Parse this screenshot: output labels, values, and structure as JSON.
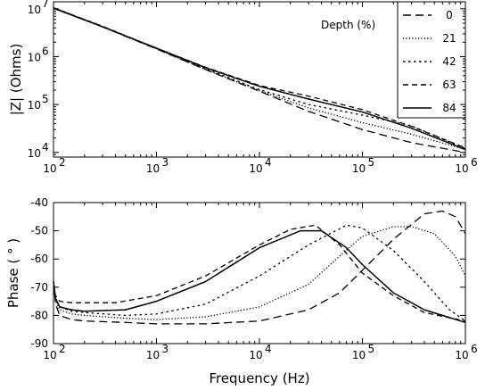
{
  "chart_data": [
    {
      "type": "line",
      "ylabel": "|Z| (Ohms)",
      "xscale": "log",
      "yscale": "log",
      "xlim": [
        100,
        1000000
      ],
      "ylim": [
        8000,
        14000000
      ],
      "x_ticks": [
        {
          "base": "10",
          "exp": "2",
          "value": 100
        },
        {
          "base": "10",
          "exp": "3",
          "value": 1000
        },
        {
          "base": "10",
          "exp": "4",
          "value": 10000
        },
        {
          "base": "10",
          "exp": "5",
          "value": 100000
        },
        {
          "base": "10",
          "exp": "6",
          "value": 1000000
        }
      ],
      "y_ticks": [
        {
          "base": "10",
          "exp": "4",
          "value": 10000
        },
        {
          "base": "10",
          "exp": "5",
          "value": 100000
        },
        {
          "base": "10",
          "exp": "6",
          "value": 1000000
        },
        {
          "base": "10",
          "exp": "7",
          "value": 10000000
        }
      ],
      "legend": {
        "title": "Depth (%)",
        "position": "top-right"
      },
      "series": [
        {
          "name": "0",
          "style": "long-dash",
          "x": [
            100,
            300,
            1000,
            3000,
            10000,
            30000,
            100000,
            300000,
            1000000
          ],
          "y": [
            10500000,
            4200000,
            1450000,
            540000,
            190000,
            72000,
            30000,
            16000,
            10000
          ]
        },
        {
          "name": "21",
          "style": "dotted",
          "x": [
            100,
            300,
            1000,
            3000,
            10000,
            30000,
            100000,
            300000,
            1000000
          ],
          "y": [
            10500000,
            4200000,
            1450000,
            540000,
            195000,
            85000,
            42000,
            24000,
            11500
          ]
        },
        {
          "name": "42",
          "style": "dash-dot",
          "x": [
            100,
            300,
            1000,
            3000,
            10000,
            30000,
            100000,
            300000,
            1000000
          ],
          "y": [
            10500000,
            4300000,
            1480000,
            560000,
            205000,
            100000,
            60000,
            36000,
            12000
          ]
        },
        {
          "name": "63",
          "style": "dash",
          "x": [
            100,
            300,
            1000,
            3000,
            10000,
            30000,
            100000,
            300000,
            1000000
          ],
          "y": [
            10500000,
            4300000,
            1500000,
            600000,
            250000,
            150000,
            78000,
            35000,
            12500
          ]
        },
        {
          "name": "84",
          "style": "solid",
          "x": [
            100,
            300,
            1000,
            3000,
            10000,
            30000,
            100000,
            300000,
            1000000
          ],
          "y": [
            10300000,
            4200000,
            1500000,
            590000,
            240000,
            130000,
            70000,
            32000,
            11500
          ]
        }
      ]
    },
    {
      "type": "line",
      "xlabel": "Frequency (Hz)",
      "ylabel": "Phase ( ° )",
      "xscale": "log",
      "xlim": [
        100,
        1000000
      ],
      "ylim": [
        -90,
        -40
      ],
      "x_ticks": [
        {
          "base": "10",
          "exp": "2",
          "value": 100
        },
        {
          "base": "10",
          "exp": "3",
          "value": 1000
        },
        {
          "base": "10",
          "exp": "4",
          "value": 10000
        },
        {
          "base": "10",
          "exp": "5",
          "value": 100000
        },
        {
          "base": "10",
          "exp": "6",
          "value": 1000000
        }
      ],
      "y_ticks": [
        "-40",
        "-50",
        "-60",
        "-70",
        "-80",
        "-90"
      ],
      "series": [
        {
          "name": "0",
          "style": "long-dash",
          "x": [
            100,
            105,
            115,
            150,
            200,
            500,
            1000,
            3000,
            10000,
            30000,
            60000,
            100000,
            200000,
            400000,
            600000,
            800000,
            1000000
          ],
          "y": [
            -68,
            -76,
            -80,
            -81.5,
            -82,
            -82.5,
            -83,
            -83,
            -82,
            -78,
            -72,
            -64,
            -53,
            -44,
            -43,
            -45,
            -51
          ]
        },
        {
          "name": "21",
          "style": "dotted",
          "x": [
            100,
            105,
            115,
            150,
            200,
            500,
            1000,
            3000,
            10000,
            30000,
            60000,
            100000,
            200000,
            300000,
            500000,
            800000,
            1000000
          ],
          "y": [
            -70,
            -75,
            -78,
            -79.5,
            -80,
            -81,
            -81.5,
            -80.5,
            -77,
            -69,
            -59,
            -52,
            -48.5,
            -48.5,
            -51,
            -59,
            -66
          ]
        },
        {
          "name": "42",
          "style": "dash-dot",
          "x": [
            100,
            105,
            115,
            150,
            200,
            500,
            1000,
            3000,
            10000,
            30000,
            70000,
            100000,
            200000,
            400000,
            700000,
            1000000
          ],
          "y": [
            -70,
            -74,
            -77,
            -78.5,
            -79,
            -80,
            -79.5,
            -76,
            -66,
            -55,
            -48,
            -49,
            -57,
            -68,
            -78,
            -82
          ]
        },
        {
          "name": "63",
          "style": "dash",
          "x": [
            100,
            105,
            115,
            150,
            200,
            400,
            1000,
            3000,
            10000,
            20000,
            35000,
            60000,
            100000,
            200000,
            400000,
            1000000
          ],
          "y": [
            -72,
            -73,
            -75,
            -75.5,
            -75.5,
            -75.5,
            -73,
            -66,
            -55,
            -49.5,
            -48,
            -55,
            -65,
            -73,
            -79,
            -82
          ]
        },
        {
          "name": "84",
          "style": "solid",
          "x": [
            100,
            105,
            115,
            150,
            200,
            500,
            1000,
            3000,
            10000,
            25000,
            40000,
            70000,
            100000,
            200000,
            400000,
            1000000
          ],
          "y": [
            -68,
            -74,
            -77,
            -78,
            -78.5,
            -78,
            -75,
            -68,
            -56,
            -50,
            -50,
            -56,
            -62,
            -72,
            -78,
            -82.5
          ]
        }
      ]
    }
  ]
}
